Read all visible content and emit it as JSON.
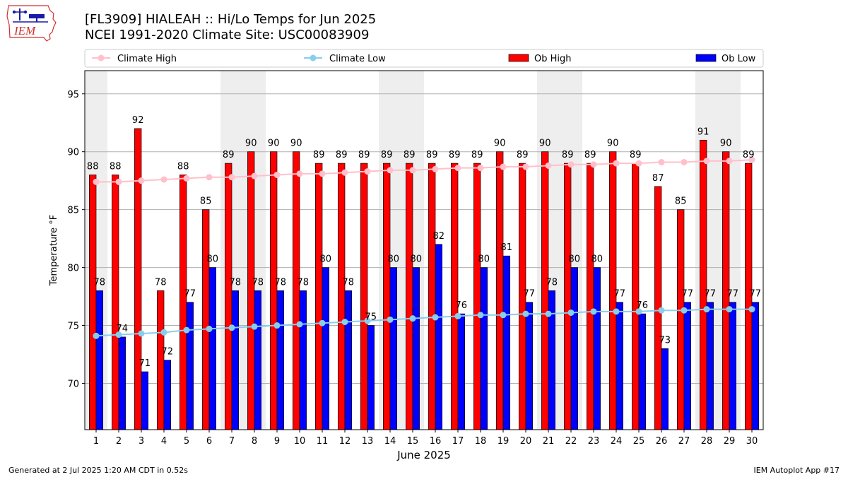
{
  "header": {
    "title_line1": "[FL3909] HIALEAH :: Hi/Lo Temps for Jun 2025",
    "title_line2": "NCEI 1991-2020 Climate Site: USC00083909",
    "logo_text": "IEM"
  },
  "footer": {
    "generated": "Generated at 2 Jul 2025 1:20 AM CDT in 0.52s",
    "app": "IEM Autoplot App #17"
  },
  "chart_data": {
    "type": "bar",
    "xlabel": "June 2025",
    "ylabel": "Temperature °F",
    "ylim": [
      66,
      97
    ],
    "yticks": [
      70,
      75,
      80,
      85,
      90,
      95
    ],
    "grid": "horizontal",
    "legend_placement": "top, above plot",
    "weekend_shading_days": [
      1,
      7,
      8,
      14,
      15,
      21,
      22,
      28,
      29
    ],
    "categories": [
      1,
      2,
      3,
      4,
      5,
      6,
      7,
      8,
      9,
      10,
      11,
      12,
      13,
      14,
      15,
      16,
      17,
      18,
      19,
      20,
      21,
      22,
      23,
      24,
      25,
      26,
      27,
      28,
      29,
      30
    ],
    "series": [
      {
        "name": "Ob High",
        "kind": "bar",
        "color": "#ff0000",
        "values": [
          88,
          88,
          92,
          78,
          88,
          85,
          89,
          90,
          90,
          90,
          89,
          89,
          89,
          89,
          89,
          89,
          89,
          89,
          90,
          89,
          90,
          89,
          89,
          90,
          89,
          87,
          85,
          91,
          90,
          89
        ]
      },
      {
        "name": "Ob Low",
        "kind": "bar",
        "color": "#0000ff",
        "values": [
          78,
          74,
          71,
          72,
          77,
          80,
          78,
          78,
          78,
          78,
          80,
          78,
          75,
          80,
          80,
          82,
          76,
          80,
          81,
          77,
          78,
          80,
          80,
          77,
          76,
          73,
          77,
          77,
          77,
          77
        ]
      },
      {
        "name": "Climate High",
        "kind": "line",
        "color": "#ffc0cb",
        "values": [
          87.4,
          87.4,
          87.5,
          87.6,
          87.7,
          87.8,
          87.8,
          87.9,
          88.0,
          88.1,
          88.1,
          88.2,
          88.3,
          88.4,
          88.4,
          88.5,
          88.6,
          88.6,
          88.7,
          88.7,
          88.8,
          88.9,
          88.9,
          89.0,
          89.0,
          89.1,
          89.1,
          89.2,
          89.2,
          89.3
        ]
      },
      {
        "name": "Climate Low",
        "kind": "line",
        "color": "#87ceeb",
        "values": [
          74.1,
          74.2,
          74.3,
          74.4,
          74.6,
          74.7,
          74.8,
          74.9,
          75.0,
          75.1,
          75.2,
          75.3,
          75.4,
          75.5,
          75.6,
          75.7,
          75.8,
          75.9,
          75.9,
          76.0,
          76.0,
          76.1,
          76.2,
          76.2,
          76.2,
          76.3,
          76.3,
          76.4,
          76.4,
          76.4
        ]
      }
    ]
  }
}
